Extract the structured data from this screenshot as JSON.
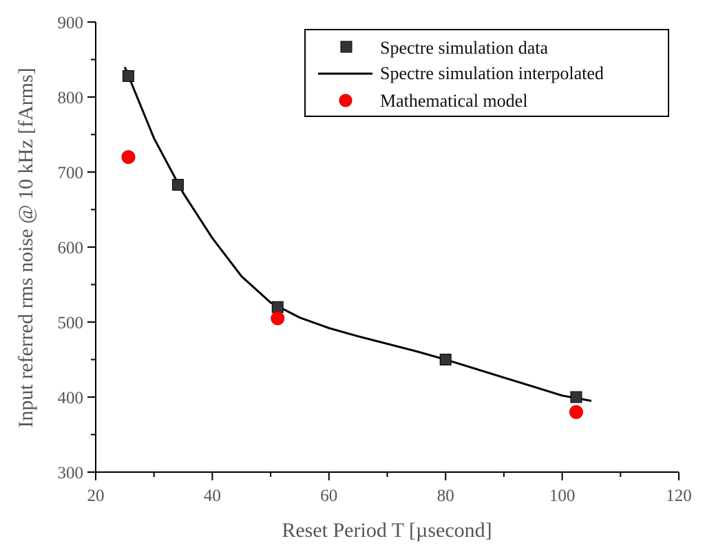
{
  "chart_data": {
    "type": "scatter",
    "xlabel": "Reset Period T [µsecond]",
    "ylabel": "Input referred rms noise @ 10 kHz [fArms]",
    "xlim": [
      20,
      120
    ],
    "ylim": [
      300,
      900
    ],
    "x_ticks": [
      20,
      40,
      60,
      80,
      100,
      120
    ],
    "y_ticks": [
      300,
      400,
      500,
      600,
      700,
      800,
      900
    ],
    "x_tick_labels": [
      "20",
      "40",
      "60",
      "80",
      "100",
      "120"
    ],
    "y_tick_labels": [
      "300",
      "400",
      "500",
      "600",
      "700",
      "800",
      "900"
    ],
    "grid": false,
    "legend_position": "top-right",
    "series": [
      {
        "name": "Spectre simulation data",
        "kind": "scatter",
        "marker": "square",
        "color": "#333333",
        "x": [
          25.6,
          34.1,
          51.2,
          80.0,
          102.4
        ],
        "y": [
          828,
          683,
          520,
          450,
          400
        ]
      },
      {
        "name": "Spectre simulation interpolated",
        "kind": "line",
        "color": "#000000",
        "x": [
          25,
          30,
          35,
          40,
          45,
          50,
          55,
          60,
          65,
          70,
          75,
          80,
          85,
          90,
          95,
          100,
          105
        ],
        "y": [
          840,
          745,
          672,
          612,
          561,
          526,
          506,
          492,
          481,
          471,
          461,
          450,
          438,
          426,
          414,
          402,
          395
        ]
      },
      {
        "name": "Mathematical model",
        "kind": "scatter",
        "marker": "circle",
        "color": "#ff0000",
        "x": [
          25.6,
          51.2,
          102.4
        ],
        "y": [
          720,
          505,
          380
        ]
      }
    ]
  }
}
